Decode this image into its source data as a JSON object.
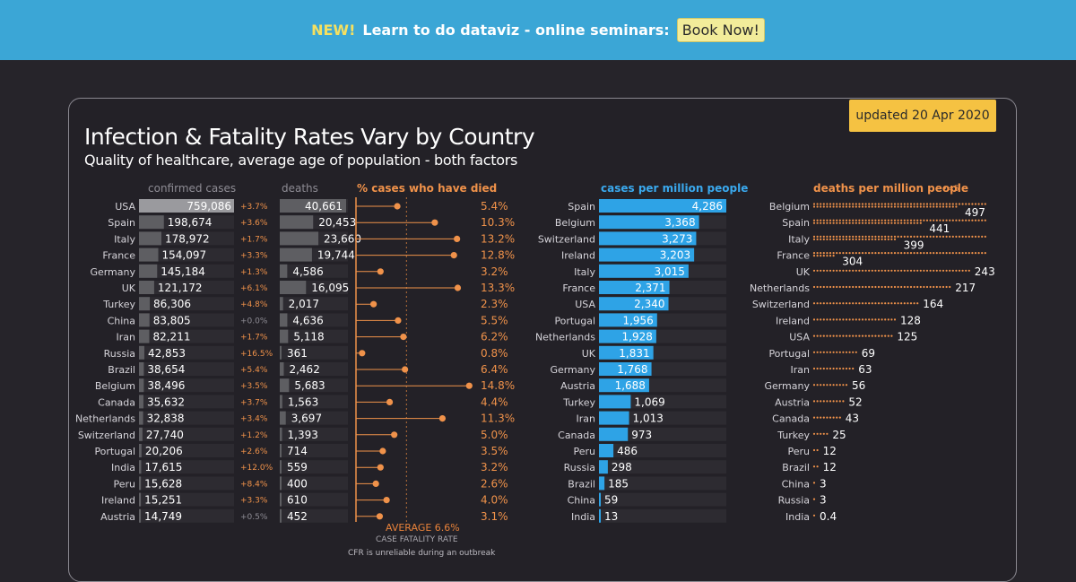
{
  "banner": {
    "new_label": "NEW!",
    "message": "Learn to do dataviz - online seminars:",
    "button_label": "Book Now!"
  },
  "updated_label": "updated 20 Apr 2020",
  "title": "Infection & Fatality Rates Vary by Country",
  "subtitle": "Quality of healthcare, average age of population - both factors",
  "headers": {
    "cases": "confirmed cases",
    "deaths": "deaths",
    "cfr": "% cases who have died",
    "cases_pm": "cases per million people",
    "deaths_pm": "deaths per million people",
    "dot_legend": "=5"
  },
  "average_label": "AVERAGE 6.6%",
  "cfr_axis_label": "CASE FATALITY RATE",
  "cfr_note": "CFR is unreliable during an outbreak",
  "colors": {
    "banner": "#3ba6d6",
    "orange": "#f0924a",
    "blue": "#2ea3e6",
    "gray_bar": "#5e5e62",
    "cases_bar_usa": "#9a9a9e"
  },
  "chart_data": [
    {
      "type": "bar",
      "title": "confirmed cases",
      "categories": [
        "USA",
        "Spain",
        "Italy",
        "France",
        "Germany",
        "UK",
        "Turkey",
        "China",
        "Iran",
        "Russia",
        "Brazil",
        "Belgium",
        "Canada",
        "Netherlands",
        "Switzerland",
        "Portugal",
        "India",
        "Peru",
        "Ireland",
        "Austria"
      ],
      "values": [
        759086,
        198674,
        178972,
        154097,
        145184,
        121172,
        86306,
        83805,
        82211,
        42853,
        38654,
        38496,
        35632,
        32838,
        27740,
        20206,
        17615,
        15628,
        15251,
        14749
      ],
      "labels": [
        "759,086",
        "198,674",
        "178,972",
        "154,097",
        "145,184",
        "121,172",
        "86,306",
        "83,805",
        "82,211",
        "42,853",
        "38,654",
        "38,496",
        "35,632",
        "32,838",
        "27,740",
        "20,206",
        "17,615",
        "15,628",
        "15,251",
        "14,749"
      ],
      "growth": [
        "+3.7%",
        "+3.6%",
        "+1.7%",
        "+3.3%",
        "+1.3%",
        "+6.1%",
        "+4.8%",
        "+0.0%",
        "+1.7%",
        "+16.5%",
        "+5.4%",
        "+3.5%",
        "+3.7%",
        "+3.4%",
        "+1.2%",
        "+2.6%",
        "+12.0%",
        "+8.4%",
        "+3.3%",
        "+0.5%"
      ]
    },
    {
      "type": "bar",
      "title": "deaths",
      "categories": [
        "USA",
        "Spain",
        "Italy",
        "France",
        "Germany",
        "UK",
        "Turkey",
        "China",
        "Iran",
        "Russia",
        "Brazil",
        "Belgium",
        "Canada",
        "Netherlands",
        "Switzerland",
        "Portugal",
        "India",
        "Peru",
        "Ireland",
        "Austria"
      ],
      "values": [
        40661,
        20453,
        23660,
        19744,
        4586,
        16095,
        2017,
        4636,
        5118,
        361,
        2462,
        5683,
        1563,
        3697,
        1393,
        714,
        559,
        400,
        610,
        452
      ],
      "labels": [
        "40,661",
        "20,453",
        "23,660",
        "19,744",
        "4,586",
        "16,095",
        "2,017",
        "4,636",
        "5,118",
        "361",
        "2,462",
        "5,683",
        "1,563",
        "3,697",
        "1,393",
        "714",
        "559",
        "400",
        "610",
        "452"
      ]
    },
    {
      "type": "scatter",
      "title": "% cases who have died",
      "categories": [
        "USA",
        "Spain",
        "Italy",
        "France",
        "Germany",
        "UK",
        "Turkey",
        "China",
        "Iran",
        "Russia",
        "Brazil",
        "Belgium",
        "Canada",
        "Netherlands",
        "Switzerland",
        "Portugal",
        "India",
        "Peru",
        "Ireland",
        "Austria"
      ],
      "values": [
        5.4,
        10.3,
        13.2,
        12.8,
        3.2,
        13.3,
        2.3,
        5.5,
        6.2,
        0.8,
        6.4,
        14.8,
        4.4,
        11.3,
        5.0,
        3.5,
        3.2,
        2.6,
        4.0,
        3.1
      ],
      "labels": [
        "5.4%",
        "10.3%",
        "13.2%",
        "12.8%",
        "3.2%",
        "13.3%",
        "2.3%",
        "5.5%",
        "6.2%",
        "0.8%",
        "6.4%",
        "14.8%",
        "4.4%",
        "11.3%",
        "5.0%",
        "3.5%",
        "3.2%",
        "2.6%",
        "4.0%",
        "3.1%"
      ],
      "average": 6.6,
      "xlim": [
        0,
        15
      ]
    },
    {
      "type": "bar",
      "title": "cases per million people",
      "categories": [
        "Spain",
        "Belgium",
        "Switzerland",
        "Ireland",
        "Italy",
        "France",
        "USA",
        "Portugal",
        "Netherlands",
        "UK",
        "Germany",
        "Austria",
        "Turkey",
        "Iran",
        "Canada",
        "Peru",
        "Russia",
        "Brazil",
        "China",
        "India"
      ],
      "values": [
        4286,
        3368,
        3273,
        3203,
        3015,
        2371,
        2340,
        1956,
        1928,
        1831,
        1768,
        1688,
        1069,
        1013,
        973,
        486,
        298,
        185,
        59,
        13
      ],
      "labels": [
        "4,286",
        "3,368",
        "3,273",
        "3,203",
        "3,015",
        "2,371",
        "2,340",
        "1,956",
        "1,928",
        "1,831",
        "1,768",
        "1,688",
        "1,069",
        "1,013",
        "973",
        "486",
        "298",
        "185",
        "59",
        "13"
      ]
    },
    {
      "type": "bar",
      "title": "deaths per million people",
      "categories": [
        "Belgium",
        "Spain",
        "Italy",
        "France",
        "UK",
        "Netherlands",
        "Switzerland",
        "Ireland",
        "USA",
        "Portugal",
        "Iran",
        "Germany",
        "Austria",
        "Canada",
        "Turkey",
        "Peru",
        "Brazil",
        "China",
        "Russia",
        "India"
      ],
      "values": [
        497,
        441,
        399,
        304,
        243,
        217,
        164,
        128,
        125,
        69,
        63,
        56,
        52,
        43,
        25,
        12,
        12,
        3,
        3,
        0.4
      ],
      "labels": [
        "497",
        "441",
        "399",
        "304",
        "243",
        "217",
        "164",
        "128",
        "125",
        "69",
        "63",
        "56",
        "52",
        "43",
        "25",
        "12",
        "12",
        "3",
        "3",
        "0.4"
      ]
    }
  ]
}
